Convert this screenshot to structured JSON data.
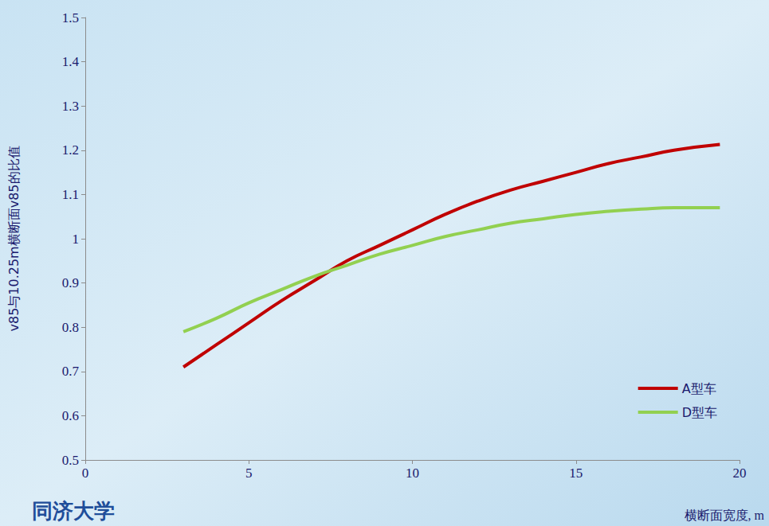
{
  "chart_data": {
    "type": "line",
    "x_label": "横断面宽度, m",
    "y_label": "v85与10.25m横断面v85的比值",
    "annotations": [
      "同济大学"
    ],
    "xlim": [
      0,
      20
    ],
    "xticks": [
      0,
      5,
      10,
      15,
      20
    ],
    "ylim": [
      0.5,
      1.5
    ],
    "yticks": [
      0.5,
      0.6,
      0.7,
      0.8,
      0.9,
      1,
      1.1,
      1.2,
      1.3,
      1.4,
      1.5
    ],
    "grid": false,
    "legend": "lower right",
    "series": [
      {
        "name": "A型车",
        "color": "#c00000",
        "x": [
          3,
          4,
          5,
          6,
          7,
          8,
          9,
          10,
          11,
          12,
          13,
          14,
          15,
          16,
          17,
          18,
          19.4
        ],
        "values": [
          0.71,
          0.76,
          0.81,
          0.86,
          0.905,
          0.95,
          0.985,
          1.02,
          1.055,
          1.085,
          1.11,
          1.13,
          1.15,
          1.17,
          1.185,
          1.2,
          1.213
        ]
      },
      {
        "name": "D型车",
        "color": "#92d050",
        "x": [
          3,
          4,
          5,
          6,
          7,
          8,
          9,
          10,
          11,
          12,
          13,
          14,
          15,
          16,
          17,
          18,
          19.4
        ],
        "values": [
          0.79,
          0.82,
          0.855,
          0.885,
          0.915,
          0.94,
          0.965,
          0.985,
          1.005,
          1.02,
          1.035,
          1.045,
          1.055,
          1.062,
          1.067,
          1.07,
          1.07
        ]
      }
    ]
  }
}
